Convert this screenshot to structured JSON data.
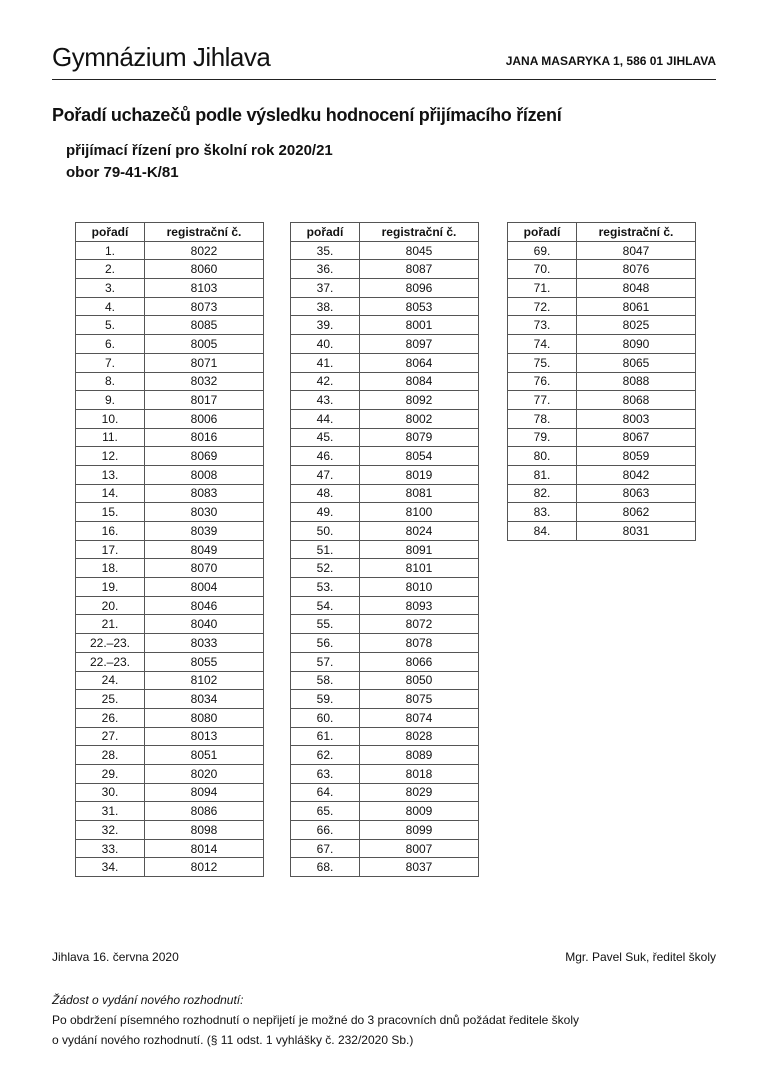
{
  "header": {
    "school": "Gymnázium Jihlava",
    "address": "JANA MASARYKA 1, 586 01 JIHLAVA"
  },
  "title": "Pořadí uchazečů podle výsledku hodnocení přijímacího řízení",
  "subtitle1": "přijímací řízení pro školní rok 2020/21",
  "subtitle2": "obor 79-41-K/81",
  "columns": [
    "pořadí",
    "registrační č."
  ],
  "tables": [
    [
      [
        "1.",
        "8022"
      ],
      [
        "2.",
        "8060"
      ],
      [
        "3.",
        "8103"
      ],
      [
        "4.",
        "8073"
      ],
      [
        "5.",
        "8085"
      ],
      [
        "6.",
        "8005"
      ],
      [
        "7.",
        "8071"
      ],
      [
        "8.",
        "8032"
      ],
      [
        "9.",
        "8017"
      ],
      [
        "10.",
        "8006"
      ],
      [
        "11.",
        "8016"
      ],
      [
        "12.",
        "8069"
      ],
      [
        "13.",
        "8008"
      ],
      [
        "14.",
        "8083"
      ],
      [
        "15.",
        "8030"
      ],
      [
        "16.",
        "8039"
      ],
      [
        "17.",
        "8049"
      ],
      [
        "18.",
        "8070"
      ],
      [
        "19.",
        "8004"
      ],
      [
        "20.",
        "8046"
      ],
      [
        "21.",
        "8040"
      ],
      [
        "22.–23.",
        "8033"
      ],
      [
        "22.–23.",
        "8055"
      ],
      [
        "24.",
        "8102"
      ],
      [
        "25.",
        "8034"
      ],
      [
        "26.",
        "8080"
      ],
      [
        "27.",
        "8013"
      ],
      [
        "28.",
        "8051"
      ],
      [
        "29.",
        "8020"
      ],
      [
        "30.",
        "8094"
      ],
      [
        "31.",
        "8086"
      ],
      [
        "32.",
        "8098"
      ],
      [
        "33.",
        "8014"
      ],
      [
        "34.",
        "8012"
      ]
    ],
    [
      [
        "35.",
        "8045"
      ],
      [
        "36.",
        "8087"
      ],
      [
        "37.",
        "8096"
      ],
      [
        "38.",
        "8053"
      ],
      [
        "39.",
        "8001"
      ],
      [
        "40.",
        "8097"
      ],
      [
        "41.",
        "8064"
      ],
      [
        "42.",
        "8084"
      ],
      [
        "43.",
        "8092"
      ],
      [
        "44.",
        "8002"
      ],
      [
        "45.",
        "8079"
      ],
      [
        "46.",
        "8054"
      ],
      [
        "47.",
        "8019"
      ],
      [
        "48.",
        "8081"
      ],
      [
        "49.",
        "8100"
      ],
      [
        "50.",
        "8024"
      ],
      [
        "51.",
        "8091"
      ],
      [
        "52.",
        "8101"
      ],
      [
        "53.",
        "8010"
      ],
      [
        "54.",
        "8093"
      ],
      [
        "55.",
        "8072"
      ],
      [
        "56.",
        "8078"
      ],
      [
        "57.",
        "8066"
      ],
      [
        "58.",
        "8050"
      ],
      [
        "59.",
        "8075"
      ],
      [
        "60.",
        "8074"
      ],
      [
        "61.",
        "8028"
      ],
      [
        "62.",
        "8089"
      ],
      [
        "63.",
        "8018"
      ],
      [
        "64.",
        "8029"
      ],
      [
        "65.",
        "8009"
      ],
      [
        "66.",
        "8099"
      ],
      [
        "67.",
        "8007"
      ],
      [
        "68.",
        "8037"
      ]
    ],
    [
      [
        "69.",
        "8047"
      ],
      [
        "70.",
        "8076"
      ],
      [
        "71.",
        "8048"
      ],
      [
        "72.",
        "8061"
      ],
      [
        "73.",
        "8025"
      ],
      [
        "74.",
        "8090"
      ],
      [
        "75.",
        "8065"
      ],
      [
        "76.",
        "8088"
      ],
      [
        "77.",
        "8068"
      ],
      [
        "78.",
        "8003"
      ],
      [
        "79.",
        "8067"
      ],
      [
        "80.",
        "8059"
      ],
      [
        "81.",
        "8042"
      ],
      [
        "82.",
        "8063"
      ],
      [
        "83.",
        "8062"
      ],
      [
        "84.",
        "8031"
      ]
    ]
  ],
  "footer": {
    "date": "Jihlava 16. června 2020",
    "signature": "Mgr. Pavel Suk, ředitel školy",
    "note_title": "Žádost o vydání nového rozhodnutí:",
    "note_line1": "Po obdržení písemného rozhodnutí o nepřijetí je možné do 3 pracovních dnů požádat ředitele školy",
    "note_line2": "o vydání nového rozhodnutí. (§ 11 odst. 1 vyhlášky č. 232/2020 Sb.)"
  }
}
